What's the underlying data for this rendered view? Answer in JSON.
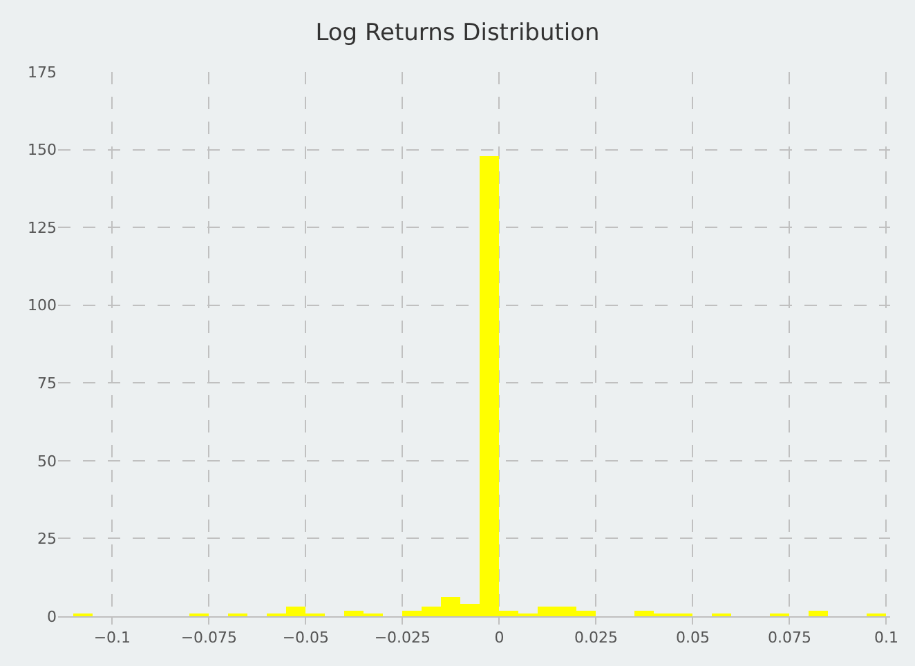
{
  "chart_data": {
    "type": "histogram",
    "title": "Log Returns Distribution",
    "bins": [
      -0.11,
      -0.105,
      -0.1,
      -0.095,
      -0.09,
      -0.085,
      -0.08,
      -0.075,
      -0.07,
      -0.065,
      -0.06,
      -0.055,
      -0.05,
      -0.045,
      -0.04,
      -0.035,
      -0.03,
      -0.025,
      -0.02,
      -0.015,
      -0.01,
      -0.005,
      0,
      0.005,
      0.01,
      0.015,
      0.02,
      0.025,
      0.03,
      0.035,
      0.04,
      0.045,
      0.05,
      0.055,
      0.06,
      0.065,
      0.07,
      0.075,
      0.08,
      0.085,
      0.09,
      0.095,
      0.1
    ],
    "values": [
      1,
      0,
      0,
      0,
      0,
      0,
      1,
      0,
      1,
      0,
      1,
      3,
      1,
      0,
      2,
      1,
      0,
      2,
      3,
      6,
      4,
      148,
      2,
      1,
      3,
      3,
      2,
      0,
      0,
      2,
      1,
      1,
      0,
      1,
      0,
      0,
      1,
      0,
      2,
      0,
      0,
      1
    ],
    "color": "#ffff00",
    "xlim": [
      -0.114,
      0.101
    ],
    "xticks": [
      -0.1,
      -0.075,
      -0.05,
      -0.025,
      0,
      0.025,
      0.05,
      0.075,
      0.1
    ],
    "ylim": [
      0,
      175
    ],
    "yticks": [
      0,
      25,
      50,
      75,
      100,
      125,
      150,
      175
    ],
    "grid": true
  }
}
